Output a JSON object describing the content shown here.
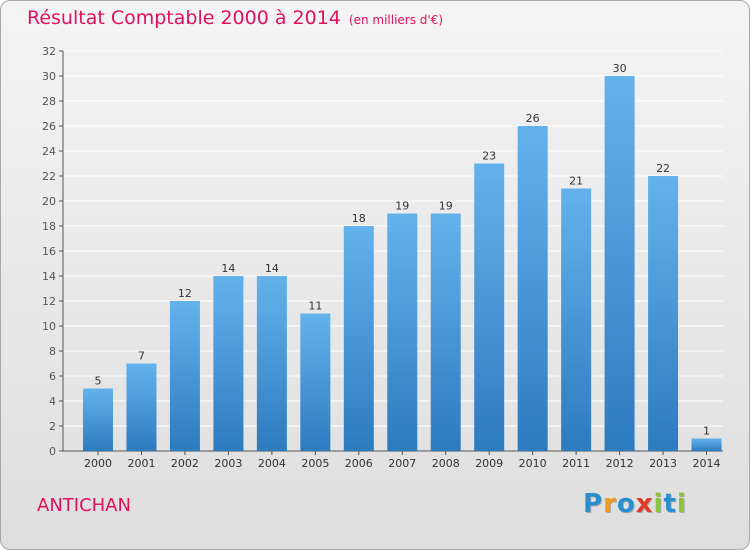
{
  "header": {
    "title": "Résultat Comptable 2000 à 2014",
    "subtitle": "(en milliers d'€)"
  },
  "commune": "ANTICHAN",
  "logo": {
    "text": "Proxiti",
    "letters": [
      "P",
      "r",
      "o",
      "x",
      "i",
      "t",
      "i"
    ],
    "letter_colors": [
      "#2a8fd0",
      "#f29a1b",
      "#2a8fd0",
      "#e23a26",
      "#8cc43a",
      "#2a8fd0",
      "#8cc43a"
    ]
  },
  "colors": {
    "bar_top": "#64b2ec",
    "bar_bottom": "#2d7bbf",
    "grid": "#ffffff",
    "axis": "#555555",
    "text_accent": "#e0115f"
  },
  "chart_data": {
    "type": "bar",
    "title": "Résultat Comptable 2000 à 2014",
    "subtitle": "(en milliers d'€)",
    "xlabel": "",
    "ylabel": "",
    "categories": [
      "2000",
      "2001",
      "2002",
      "2003",
      "2004",
      "2005",
      "2006",
      "2007",
      "2008",
      "2009",
      "2010",
      "2011",
      "2012",
      "2013",
      "2014"
    ],
    "values": [
      5,
      7,
      12,
      14,
      14,
      11,
      18,
      19,
      19,
      23,
      26,
      21,
      30,
      22,
      1
    ],
    "ylim": [
      0,
      32
    ],
    "yticks": [
      0,
      2,
      4,
      6,
      8,
      10,
      12,
      14,
      16,
      18,
      20,
      22,
      24,
      26,
      28,
      30,
      32
    ],
    "grid": true
  }
}
